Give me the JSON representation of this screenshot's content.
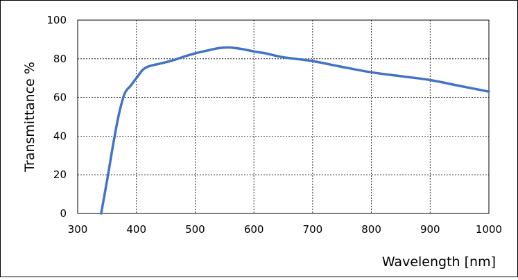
{
  "chart_data": {
    "type": "line",
    "title": "",
    "xlabel": "Wavelength [nm]",
    "ylabel": "Transmittance %",
    "xlim": [
      300,
      1000
    ],
    "ylim": [
      0,
      100
    ],
    "x_ticks": [
      "300",
      "400",
      "500",
      "600",
      "700",
      "800",
      "900",
      "1000"
    ],
    "y_ticks": [
      "0",
      "20",
      "40",
      "60",
      "80",
      "100"
    ],
    "grid": true,
    "grid_style": "dashed",
    "legend": false,
    "line_color": "#4472C4",
    "series": [
      {
        "x": [
          340,
          350,
          360,
          370,
          380,
          390,
          400,
          410,
          420,
          440,
          460,
          480,
          500,
          520,
          540,
          560,
          580,
          600,
          620,
          650,
          700,
          750,
          800,
          850,
          900,
          950,
          1000
        ],
        "y": [
          0,
          17,
          35,
          51,
          62,
          66,
          70,
          74,
          76,
          77.5,
          79,
          81,
          82.8,
          84.2,
          85.5,
          85.8,
          85,
          83.8,
          82.8,
          80.8,
          78.8,
          75.8,
          73,
          71,
          69,
          66,
          63
        ]
      }
    ]
  }
}
